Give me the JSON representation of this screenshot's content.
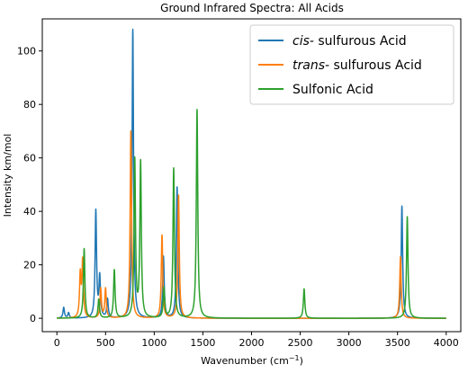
{
  "chart_data": {
    "type": "line",
    "title": "Ground Infrared Spectra: All Acids",
    "xlabel": "Wavenumber (cm",
    "xlabel_sup": "−1",
    "xlabel_end": ")",
    "ylabel": "Intensity km/mol",
    "xlim": [
      -150,
      4150
    ],
    "ylim": [
      -5,
      112
    ],
    "xticks": [
      0,
      500,
      1000,
      1500,
      2000,
      2500,
      3000,
      3500,
      4000
    ],
    "yticks": [
      0,
      20,
      40,
      60,
      80,
      100
    ],
    "grid": false,
    "legend_position": "top-right",
    "peak_half_width": 9,
    "series": [
      {
        "name_italic": "cis-",
        "name_rest": " sulfurous Acid",
        "color": "#1f77b4",
        "peaks": [
          [
            70,
            4
          ],
          [
            120,
            2
          ],
          [
            400,
            40
          ],
          [
            440,
            15
          ],
          [
            520,
            7
          ],
          [
            780,
            108
          ],
          [
            1095,
            23
          ],
          [
            1235,
            49
          ],
          [
            3545,
            42
          ]
        ]
      },
      {
        "name_italic": "trans-",
        "name_rest": " sulfurous Acid",
        "color": "#ff7f0e",
        "peaks": [
          [
            240,
            16
          ],
          [
            265,
            21
          ],
          [
            450,
            11
          ],
          [
            500,
            11
          ],
          [
            760,
            70
          ],
          [
            1080,
            31
          ],
          [
            1250,
            46
          ],
          [
            3530,
            23
          ]
        ]
      },
      {
        "name_italic": "",
        "name_rest": "Sulfonic Acid",
        "color": "#2ca02c",
        "peaks": [
          [
            280,
            26
          ],
          [
            430,
            7
          ],
          [
            590,
            18
          ],
          [
            800,
            59
          ],
          [
            860,
            58
          ],
          [
            1100,
            11
          ],
          [
            1200,
            56
          ],
          [
            1440,
            78
          ],
          [
            2540,
            11
          ],
          [
            3600,
            38
          ]
        ]
      }
    ]
  }
}
